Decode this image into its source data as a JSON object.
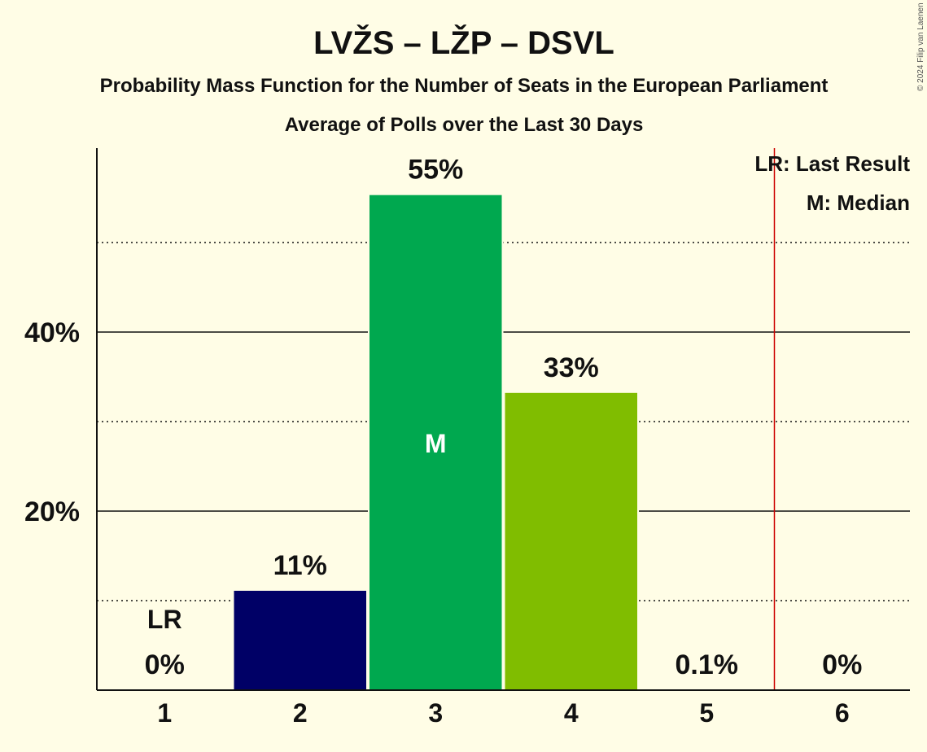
{
  "chart_data": {
    "type": "bar",
    "title": "LVŽS – LŽP – DSVL",
    "subtitle": "Probability Mass Function for the Number of Seats in the European Parliament",
    "subtitle2": "Average of Polls over the Last 30 Days",
    "categories": [
      "1",
      "2",
      "3",
      "4",
      "5",
      "6"
    ],
    "values": [
      0,
      11.1,
      55.3,
      33.2,
      0.1,
      0
    ],
    "value_labels": [
      "0%",
      "11%",
      "55%",
      "33%",
      "0.1%",
      "0%"
    ],
    "bar_colors": [
      "#000066",
      "#000066",
      "#00A84F",
      "#80BD00",
      "#80BD00",
      "#80BD00"
    ],
    "ylim": [
      0,
      60
    ],
    "y_ticks": [
      20,
      40
    ],
    "y_tick_labels": [
      "20%",
      "40%"
    ],
    "minor_gridlines": [
      10,
      30,
      50
    ],
    "median_index": 2,
    "median_marker": "M",
    "last_result_index": 0,
    "last_result_marker": "LR",
    "last_result_line_after": 5,
    "legend": [
      "LR: Last Result",
      "M: Median"
    ],
    "legend_position": "top-right",
    "copyright": "© 2024 Filip van Laenen",
    "colors": {
      "background": "#FFFDE6",
      "last_result_line": "#CC0000"
    }
  }
}
